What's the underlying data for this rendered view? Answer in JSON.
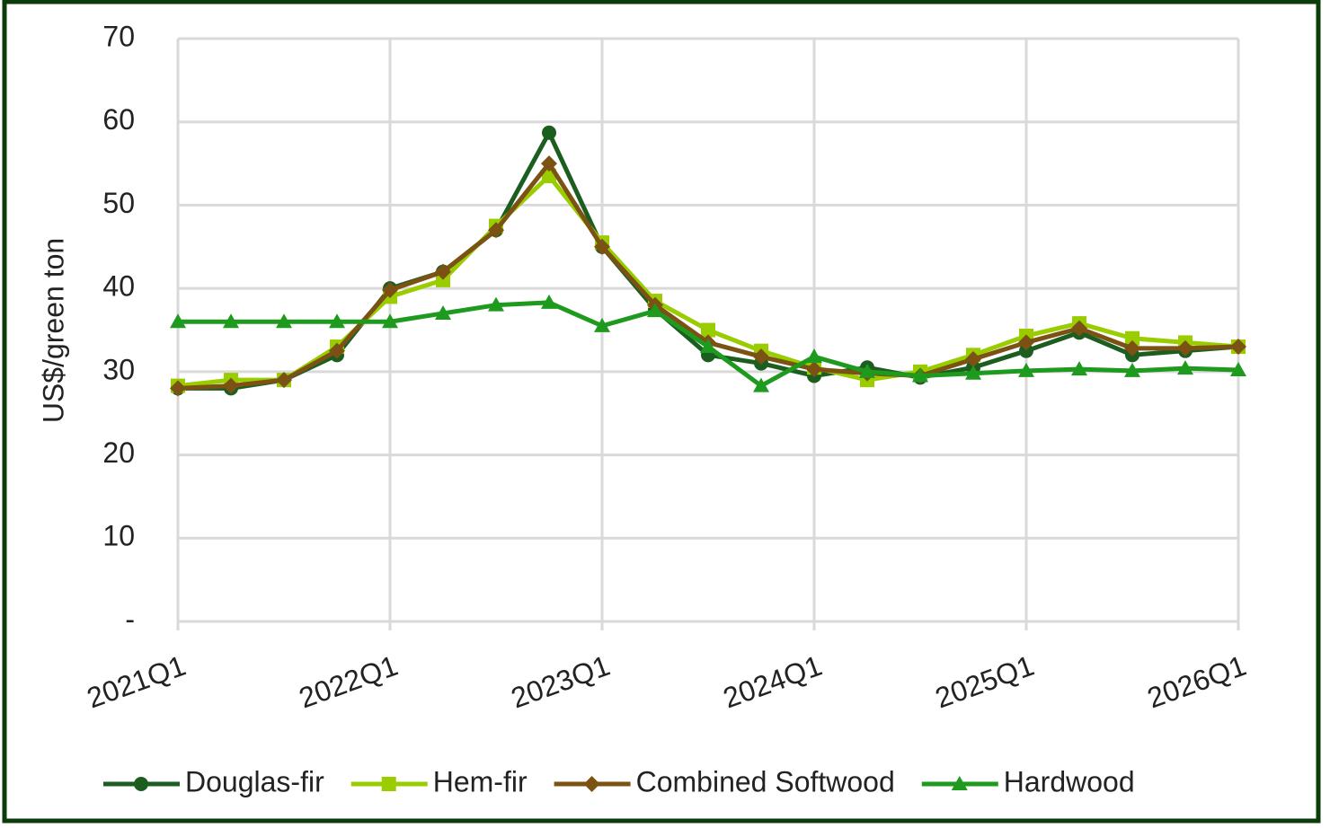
{
  "chart_data": {
    "type": "line",
    "y_label": "US$/green ton",
    "categories": [
      "2021Q1",
      null,
      null,
      null,
      "2022Q1",
      null,
      null,
      null,
      "2023Q1",
      null,
      null,
      null,
      "2024Q1",
      null,
      null,
      null,
      "2025Q1",
      null,
      null,
      null,
      "2026Q1"
    ],
    "series": [
      {
        "name": "Douglas-fir",
        "color": "#1b5e20",
        "marker": "circle",
        "values": [
          28,
          28,
          29,
          32,
          40,
          42,
          47,
          58.7,
          45,
          37.5,
          32,
          31,
          29.5,
          30.5,
          29.3,
          30.5,
          32.5,
          34.7,
          32,
          32.5,
          33
        ]
      },
      {
        "name": "Hem-fir",
        "color": "#9acd00",
        "marker": "square",
        "values": [
          28.3,
          29,
          29,
          33,
          39,
          41,
          47.5,
          53.5,
          45.5,
          38.5,
          35,
          32.5,
          30.5,
          29,
          30,
          32,
          34.3,
          35.8,
          34,
          33.5,
          33
        ]
      },
      {
        "name": "Combined Softwood",
        "color": "#7b5114",
        "marker": "diamond",
        "values": [
          28,
          28.3,
          29,
          32.5,
          39.8,
          42,
          47,
          55,
          45,
          38,
          33.5,
          31.8,
          30.3,
          29.8,
          29.5,
          31.5,
          33.5,
          35.2,
          32.8,
          32.8,
          33
        ]
      },
      {
        "name": "Hardwood",
        "color": "#1e9a1e",
        "marker": "triangle",
        "values": [
          36,
          36,
          36,
          36,
          36,
          37,
          38,
          38.3,
          35.5,
          37.3,
          33,
          28.3,
          31.8,
          30,
          29.5,
          29.8,
          30.1,
          30.3,
          30.1,
          30.4,
          30.2
        ]
      }
    ],
    "ylim": [
      0,
      70
    ],
    "yticks": [
      {
        "value": 0,
        "label": "-"
      },
      10,
      20,
      30,
      40,
      50,
      60,
      70
    ],
    "grid": true,
    "legend": "bottom"
  }
}
